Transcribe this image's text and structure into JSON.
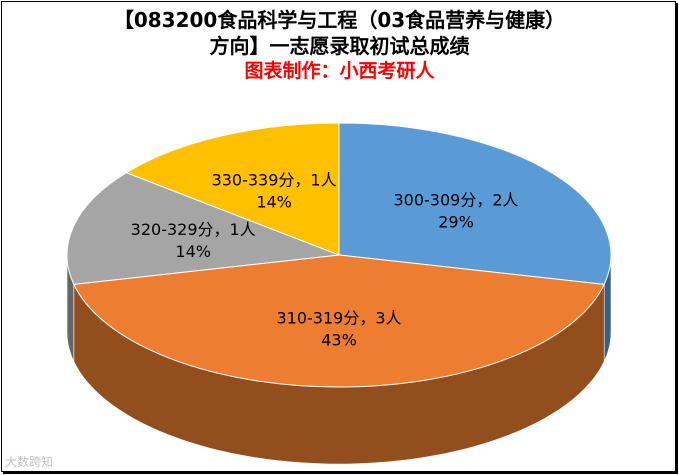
{
  "chart_data": {
    "type": "pie",
    "title": "【083200食品科学与工程（03食品营养与健康）方向】一志愿录取初试总成绩",
    "title_lines": [
      "【083200食品科学与工程（03食品营养与健康）",
      "方向】一志愿录取初试总成绩"
    ],
    "subtitle": "图表制作：小西考研人",
    "slices": [
      {
        "label": "300-309分，2人",
        "value": 2,
        "percent": "29%",
        "color": "#5b9bd5"
      },
      {
        "label": "310-319分，3人",
        "value": 3,
        "percent": "43%",
        "color": "#ed7d31"
      },
      {
        "label": "320-329分，1人",
        "value": 1,
        "percent": "14%",
        "color": "#a5a5a5"
      },
      {
        "label": "330-339分，1人",
        "value": 1,
        "percent": "14%",
        "color": "#ffc000"
      }
    ]
  },
  "watermark": "大数跨知"
}
